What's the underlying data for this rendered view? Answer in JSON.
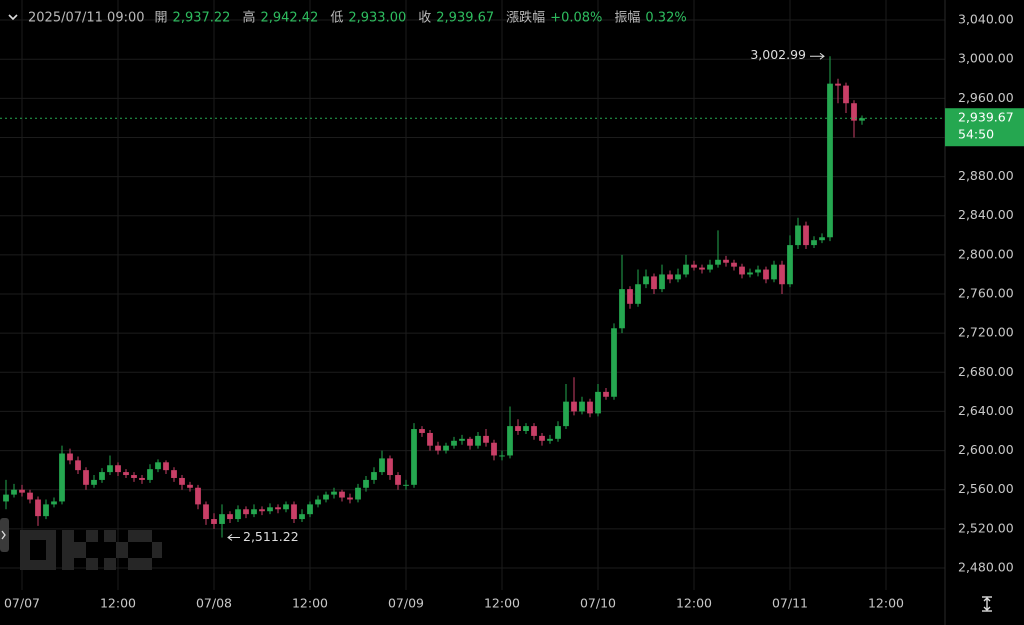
{
  "header": {
    "datetime": "2025/07/11 09:00",
    "fields": [
      {
        "label": "開",
        "value": "2,937.22"
      },
      {
        "label": "高",
        "value": "2,942.42"
      },
      {
        "label": "低",
        "value": "2,933.00"
      },
      {
        "label": "收",
        "value": "2,939.67"
      },
      {
        "label": "漲跌幅",
        "value": "+0.08%"
      },
      {
        "label": "振幅",
        "value": "0.32%"
      }
    ]
  },
  "chart_data": {
    "type": "candlestick",
    "up_color": "#25a750",
    "down_color": "#c93f67",
    "grid": true,
    "xlim": [
      -2.75,
      115.375
    ],
    "ylim": [
      2457.5,
      3060.5
    ],
    "xticks": [
      {
        "value": 0,
        "label": "07/07"
      },
      {
        "value": 12,
        "label": "12:00"
      },
      {
        "value": 24,
        "label": "07/08"
      },
      {
        "value": 36,
        "label": "12:00"
      },
      {
        "value": 48,
        "label": "07/09"
      },
      {
        "value": 60,
        "label": "12:00"
      },
      {
        "value": 72,
        "label": "07/10"
      },
      {
        "value": 84,
        "label": "12:00"
      },
      {
        "value": 96,
        "label": "07/11"
      },
      {
        "value": 108,
        "label": "12:00"
      }
    ],
    "yticks": [
      {
        "value": 2480,
        "label": "2,480.00"
      },
      {
        "value": 2520,
        "label": "2,520.00"
      },
      {
        "value": 2560,
        "label": "2,560.00"
      },
      {
        "value": 2600,
        "label": "2,600.00"
      },
      {
        "value": 2640,
        "label": "2,640.00"
      },
      {
        "value": 2680,
        "label": "2,680.00"
      },
      {
        "value": 2720,
        "label": "2,720.00"
      },
      {
        "value": 2760,
        "label": "2,760.00"
      },
      {
        "value": 2800,
        "label": "2,800.00"
      },
      {
        "value": 2840,
        "label": "2,840.00"
      },
      {
        "value": 2880,
        "label": "2,880.00"
      },
      {
        "value": 2920,
        "label": "2,920.00"
      },
      {
        "value": 2960,
        "label": "2,960.00"
      },
      {
        "value": 3000,
        "label": "3,000.00"
      },
      {
        "value": 3040,
        "label": "3,040.00"
      }
    ],
    "max_label": "3,002.99",
    "min_label": "2,511.22",
    "last_price_label": "2,939.67",
    "countdown": "54:50",
    "x": [
      -2,
      -1,
      0,
      1,
      2,
      3,
      4,
      5,
      6,
      7,
      8,
      9,
      10,
      11,
      12,
      13,
      14,
      15,
      16,
      17,
      18,
      19,
      20,
      21,
      22,
      23,
      24,
      25,
      26,
      27,
      28,
      29,
      30,
      31,
      32,
      33,
      34,
      35,
      36,
      37,
      38,
      39,
      40,
      41,
      42,
      43,
      44,
      45,
      46,
      47,
      48,
      49,
      50,
      51,
      52,
      53,
      54,
      55,
      56,
      57,
      58,
      59,
      60,
      61,
      62,
      63,
      64,
      65,
      66,
      67,
      68,
      69,
      70,
      71,
      72,
      73,
      74,
      75,
      76,
      77,
      78,
      79,
      80,
      81,
      82,
      83,
      84,
      85,
      86,
      87,
      88,
      89,
      90,
      91,
      92,
      93,
      94,
      95,
      96,
      97,
      98,
      99,
      100,
      101,
      102,
      103,
      104,
      105
    ],
    "open": [
      2548,
      2555,
      2560,
      2557,
      2550,
      2533,
      2545,
      2548,
      2597,
      2590,
      2580,
      2565,
      2570,
      2578,
      2585,
      2578,
      2575,
      2572,
      2570,
      2581,
      2588,
      2580,
      2572,
      2565,
      2562,
      2545,
      2530,
      2525,
      2535,
      2530,
      2540,
      2535,
      2540,
      2538,
      2542,
      2540,
      2545,
      2530,
      2535,
      2545,
      2550,
      2555,
      2558,
      2552,
      2550,
      2562,
      2570,
      2578,
      2592,
      2575,
      2565,
      2565,
      2622,
      2618,
      2605,
      2600,
      2605,
      2610,
      2612,
      2605,
      2615,
      2608,
      2595,
      2595,
      2625,
      2620,
      2625,
      2615,
      2610,
      2612,
      2625,
      2650,
      2640,
      2650,
      2638,
      2660,
      2655,
      2725,
      2765,
      2750,
      2770,
      2778,
      2765,
      2780,
      2775,
      2780,
      2790,
      2787,
      2785,
      2790,
      2795,
      2792,
      2788,
      2780,
      2782,
      2785,
      2775,
      2790,
      2770,
      2810,
      2830,
      2810,
      2815,
      2818,
      2975,
      2973,
      2955,
      2937.22
    ],
    "high": [
      2570,
      2566,
      2565,
      2560,
      2553,
      2550,
      2552,
      2605,
      2602,
      2594,
      2583,
      2575,
      2582,
      2595,
      2588,
      2581,
      2578,
      2575,
      2586,
      2591,
      2590,
      2583,
      2575,
      2568,
      2565,
      2548,
      2536,
      2545,
      2538,
      2544,
      2543,
      2545,
      2543,
      2546,
      2545,
      2548,
      2548,
      2540,
      2548,
      2554,
      2558,
      2562,
      2560,
      2556,
      2566,
      2574,
      2583,
      2600,
      2595,
      2578,
      2570,
      2628,
      2625,
      2621,
      2609,
      2608,
      2614,
      2616,
      2614,
      2619,
      2622,
      2611,
      2600,
      2645,
      2632,
      2628,
      2628,
      2618,
      2616,
      2630,
      2668,
      2675,
      2655,
      2653,
      2668,
      2664,
      2730,
      2800,
      2768,
      2785,
      2785,
      2781,
      2790,
      2784,
      2786,
      2800,
      2794,
      2790,
      2795,
      2825,
      2799,
      2795,
      2791,
      2786,
      2789,
      2788,
      2794,
      2794,
      2820,
      2838,
      2834,
      2819,
      2822,
      3002.99,
      2980,
      2976,
      2958,
      2942.42
    ],
    "low": [
      2540,
      2552,
      2553,
      2546,
      2523,
      2530,
      2542,
      2545,
      2586,
      2576,
      2560,
      2562,
      2567,
      2575,
      2574,
      2572,
      2568,
      2566,
      2567,
      2578,
      2576,
      2568,
      2560,
      2558,
      2540,
      2524,
      2520,
      2511.22,
      2526,
      2527,
      2531,
      2532,
      2534,
      2535,
      2536,
      2537,
      2526,
      2527,
      2532,
      2542,
      2547,
      2551,
      2548,
      2546,
      2547,
      2558,
      2566,
      2575,
      2570,
      2560,
      2560,
      2562,
      2614,
      2600,
      2596,
      2597,
      2602,
      2606,
      2601,
      2602,
      2604,
      2590,
      2590,
      2592,
      2616,
      2617,
      2611,
      2605,
      2607,
      2609,
      2622,
      2636,
      2637,
      2634,
      2635,
      2652,
      2652,
      2720,
      2745,
      2747,
      2766,
      2760,
      2762,
      2771,
      2772,
      2777,
      2784,
      2781,
      2782,
      2787,
      2788,
      2784,
      2776,
      2777,
      2778,
      2771,
      2772,
      2760,
      2767,
      2806,
      2806,
      2807,
      2812,
      2814,
      2955,
      2945,
      2920,
      2933
    ],
    "close": [
      2555,
      2560,
      2557,
      2550,
      2533,
      2545,
      2548,
      2597,
      2590,
      2580,
      2565,
      2570,
      2578,
      2585,
      2578,
      2575,
      2572,
      2570,
      2581,
      2588,
      2580,
      2572,
      2565,
      2562,
      2545,
      2530,
      2525,
      2535,
      2530,
      2540,
      2535,
      2540,
      2538,
      2542,
      2540,
      2545,
      2530,
      2535,
      2545,
      2550,
      2555,
      2558,
      2552,
      2550,
      2562,
      2570,
      2578,
      2592,
      2575,
      2565,
      2565,
      2622,
      2618,
      2605,
      2600,
      2605,
      2610,
      2612,
      2605,
      2615,
      2608,
      2595,
      2595,
      2625,
      2620,
      2625,
      2615,
      2610,
      2612,
      2625,
      2650,
      2640,
      2650,
      2638,
      2660,
      2655,
      2725,
      2765,
      2750,
      2770,
      2778,
      2765,
      2780,
      2775,
      2780,
      2790,
      2787,
      2785,
      2790,
      2795,
      2792,
      2788,
      2780,
      2782,
      2785,
      2775,
      2790,
      2770,
      2810,
      2830,
      2810,
      2815,
      2818,
      2975,
      2973,
      2955,
      2937.22,
      2939.67
    ]
  }
}
